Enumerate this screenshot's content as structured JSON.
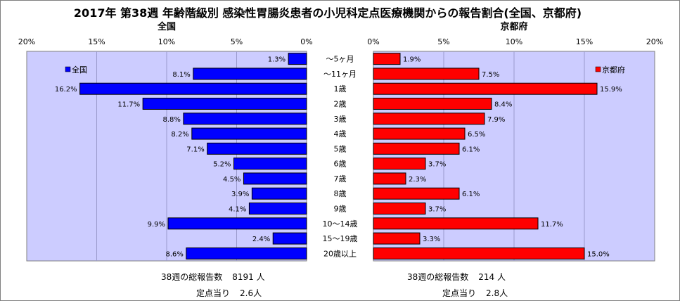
{
  "title": "2017年 第38週 年齢階級別 感染性胃腸炎患者の小児科定点医療機関からの報告割合(全国、京都府)",
  "chart_data": {
    "type": "bar",
    "orientation": "horizontal",
    "categories": [
      "～5ヶ月",
      "～11ヶ月",
      "1歳",
      "2歳",
      "3歳",
      "4歳",
      "5歳",
      "6歳",
      "7歳",
      "8歳",
      "9歳",
      "10～14歳",
      "15～19歳",
      "20歳以上"
    ],
    "xlim": [
      0,
      20
    ],
    "x_ticks": [
      "20%",
      "15%",
      "10%",
      "5%",
      "0%"
    ],
    "x_ticks_right": [
      "0%",
      "5%",
      "10%",
      "15%",
      "20%"
    ],
    "grid": true,
    "series": [
      {
        "name": "全国",
        "panel_title": "全国",
        "color": "#0000ff",
        "legend_position": "top-left",
        "values": [
          1.3,
          8.1,
          16.2,
          11.7,
          8.8,
          8.2,
          7.1,
          5.2,
          4.5,
          3.9,
          4.1,
          9.9,
          2.4,
          8.6
        ],
        "labels": [
          "1.3%",
          "8.1%",
          "16.2%",
          "11.7%",
          "8.8%",
          "8.2%",
          "7.1%",
          "5.2%",
          "4.5%",
          "3.9%",
          "4.1%",
          "9.9%",
          "2.4%",
          "8.6%"
        ]
      },
      {
        "name": "京都府",
        "panel_title": "京都府",
        "color": "#ff0000",
        "legend_position": "top-right",
        "values": [
          1.9,
          7.5,
          15.9,
          8.4,
          7.9,
          6.5,
          6.1,
          3.7,
          2.3,
          6.1,
          3.7,
          11.7,
          3.3,
          15.0
        ],
        "labels": [
          "1.9%",
          "7.5%",
          "15.9%",
          "8.4%",
          "7.9%",
          "6.5%",
          "6.1%",
          "3.7%",
          "2.3%",
          "6.1%",
          "3.7%",
          "11.7%",
          "3.3%",
          "15.0%"
        ]
      }
    ],
    "plot_bg": "#ccccff"
  },
  "summary": {
    "left": {
      "total_label": "38週の総報告数",
      "total_value": "8191 人",
      "per_label": "定点当り",
      "per_value": "2.6人"
    },
    "right": {
      "total_label": "38週の総報告数",
      "total_value": "214 人",
      "per_label": "定点当り",
      "per_value": "2.8人"
    }
  }
}
